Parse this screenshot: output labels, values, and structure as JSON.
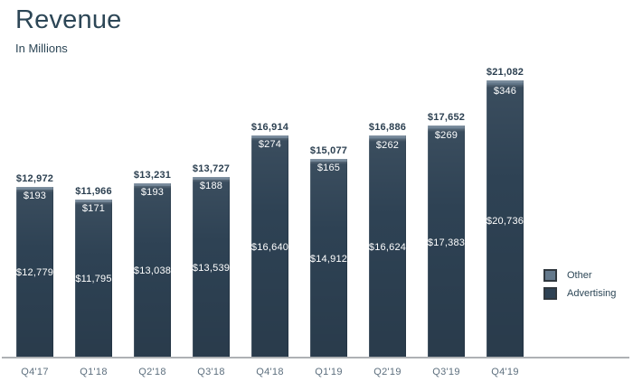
{
  "header": {
    "title": "Revenue",
    "subtitle": "In Millions"
  },
  "chart_data": {
    "type": "bar",
    "stacked": true,
    "title": "Revenue",
    "subtitle": "In Millions",
    "value_prefix": "$",
    "categories": [
      "Q4'17",
      "Q1'18",
      "Q2'18",
      "Q3'18",
      "Q4'18",
      "Q1'19",
      "Q2'19",
      "Q3'19",
      "Q4'19"
    ],
    "series": [
      {
        "name": "Advertising",
        "color": "#2e4254",
        "values": [
          12779,
          11795,
          13038,
          13539,
          16640,
          14912,
          16624,
          17383,
          20736
        ],
        "labels": [
          "$12,779",
          "$11,795",
          "$13,038",
          "$13,539",
          "$16,640",
          "$14,912",
          "$16,624",
          "$17,383",
          "$20,736"
        ]
      },
      {
        "name": "Other",
        "color": "#64798c",
        "values": [
          193,
          171,
          193,
          188,
          274,
          165,
          262,
          269,
          346
        ],
        "labels": [
          "$193",
          "$171",
          "$193",
          "$188",
          "$274",
          "$165",
          "$262",
          "$269",
          "$346"
        ]
      }
    ],
    "totals": [
      12972,
      11966,
      13231,
      13727,
      16914,
      15077,
      16886,
      17652,
      21082
    ],
    "total_labels": [
      "$12,972",
      "$11,966",
      "$13,231",
      "$13,727",
      "$16,914",
      "$15,077",
      "$16,886",
      "$17,652",
      "$21,082"
    ],
    "legend": [
      {
        "label": "Other",
        "color": "#64798c"
      },
      {
        "label": "Advertising",
        "color": "#2e4254"
      }
    ],
    "legend_position": "right",
    "axis": {
      "baseline_color": "#aeb1b4",
      "label_color": "#5d6f7e"
    }
  },
  "colors": {
    "background": "#ffffff",
    "title": "#2c4656",
    "total_label": "#2b3f50",
    "bar_value_label": "#ffffff"
  }
}
